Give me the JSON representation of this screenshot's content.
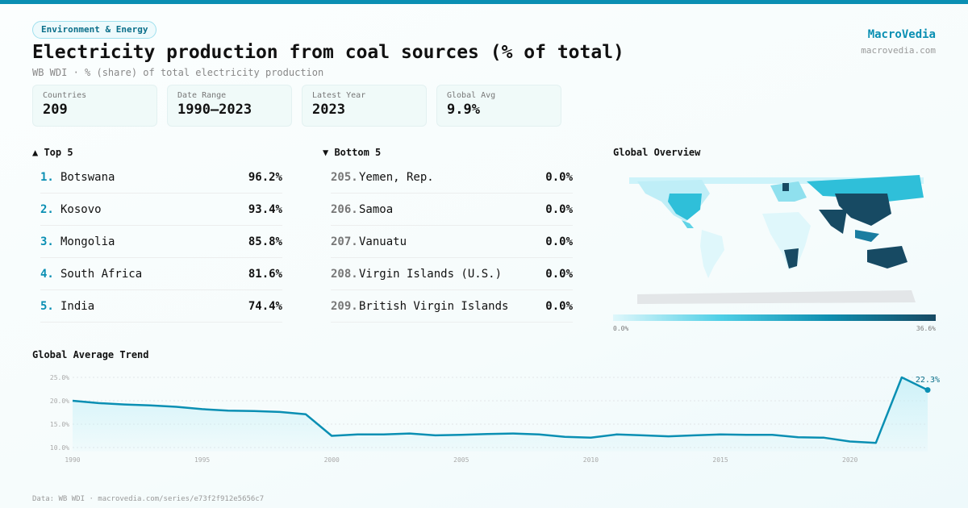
{
  "header": {
    "category": "Environment & Energy",
    "title": "Electricity production from coal sources (% of total)",
    "subtitle": "WB WDI · % (share) of total electricity production",
    "brand": "MacroVedia",
    "brand_url": "macrovedia.com"
  },
  "stats": [
    {
      "label": "Countries",
      "value": "209"
    },
    {
      "label": "Date Range",
      "value": "1990–2023"
    },
    {
      "label": "Latest Year",
      "value": "2023"
    },
    {
      "label": "Global Avg",
      "value": "9.9%"
    }
  ],
  "top5": {
    "title": "▲ Top 5",
    "items": [
      {
        "rank": "1.",
        "name": "Botswana",
        "value": "96.2%"
      },
      {
        "rank": "2.",
        "name": "Kosovo",
        "value": "93.4%"
      },
      {
        "rank": "3.",
        "name": "Mongolia",
        "value": "85.8%"
      },
      {
        "rank": "4.",
        "name": "South Africa",
        "value": "81.6%"
      },
      {
        "rank": "5.",
        "name": "India",
        "value": "74.4%"
      }
    ]
  },
  "bottom5": {
    "title": "▼ Bottom 5",
    "items": [
      {
        "rank": "205.",
        "name": "Yemen, Rep.",
        "value": "0.0%"
      },
      {
        "rank": "206.",
        "name": "Samoa",
        "value": "0.0%"
      },
      {
        "rank": "207.",
        "name": "Vanuatu",
        "value": "0.0%"
      },
      {
        "rank": "208.",
        "name": "Virgin Islands (U.S.)",
        "value": "0.0%"
      },
      {
        "rank": "209.",
        "name": "British Virgin Islands",
        "value": "0.0%"
      }
    ]
  },
  "map": {
    "title": "Global Overview",
    "legend_min": "0.0%",
    "legend_max": "36.6%"
  },
  "chart_data": {
    "type": "area",
    "title": "Global Average Trend",
    "x": [
      1990,
      1991,
      1992,
      1993,
      1994,
      1995,
      1996,
      1997,
      1998,
      1999,
      2000,
      2001,
      2002,
      2003,
      2004,
      2005,
      2006,
      2007,
      2008,
      2009,
      2010,
      2011,
      2012,
      2013,
      2014,
      2015,
      2016,
      2017,
      2018,
      2019,
      2020,
      2021,
      2022,
      2023
    ],
    "values": [
      20.0,
      19.5,
      19.2,
      19.0,
      18.7,
      18.2,
      17.9,
      17.8,
      17.6,
      17.1,
      12.5,
      12.8,
      12.8,
      13.0,
      12.6,
      12.7,
      12.9,
      13.0,
      12.8,
      12.3,
      12.1,
      12.8,
      12.6,
      12.4,
      12.6,
      12.8,
      12.7,
      12.7,
      12.2,
      12.1,
      11.3,
      11.0,
      25.0,
      22.3
    ],
    "yticks": [
      "10.0%",
      "15.0%",
      "20.0%",
      "25.0%"
    ],
    "ytick_values": [
      10,
      15,
      20,
      25
    ],
    "xticks": [
      "1990",
      "1995",
      "2000",
      "2005",
      "2010",
      "2015",
      "2020"
    ],
    "ylim": [
      9,
      26
    ],
    "last_label": "22.3%",
    "color": "#0a8fb3"
  },
  "footer": "Data: WB WDI · macrovedia.com/series/e73f2f912e5656c7"
}
